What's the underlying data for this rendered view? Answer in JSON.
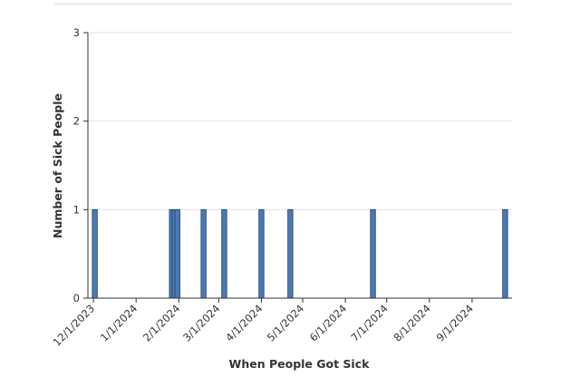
{
  "chart_data": {
    "type": "bar",
    "title": "",
    "xlabel": "When People Got Sick",
    "ylabel": "Number of Sick People",
    "ylim": [
      0,
      3
    ],
    "yticks": [
      "0",
      "1",
      "2",
      "3"
    ],
    "xticks": [
      {
        "date": "2023-12-01",
        "label": "12/1/2023"
      },
      {
        "date": "2024-01-01",
        "label": "1/1/2024"
      },
      {
        "date": "2024-02-01",
        "label": "2/1/2024"
      },
      {
        "date": "2024-03-01",
        "label": "3/1/2024"
      },
      {
        "date": "2024-04-01",
        "label": "4/1/2024"
      },
      {
        "date": "2024-05-01",
        "label": "5/1/2024"
      },
      {
        "date": "2024-06-01",
        "label": "6/1/2024"
      },
      {
        "date": "2024-07-01",
        "label": "7/1/2024"
      },
      {
        "date": "2024-08-01",
        "label": "8/1/2024"
      },
      {
        "date": "2024-09-01",
        "label": "9/1/2024"
      }
    ],
    "points": [
      {
        "date": "2023-12-02",
        "value": 1
      },
      {
        "date": "2024-01-27",
        "value": 1
      },
      {
        "date": "2024-01-29",
        "value": 1
      },
      {
        "date": "2024-01-31",
        "value": 1
      },
      {
        "date": "2024-02-19",
        "value": 1
      },
      {
        "date": "2024-03-05",
        "value": 1
      },
      {
        "date": "2024-04-01",
        "value": 1
      },
      {
        "date": "2024-04-22",
        "value": 1
      },
      {
        "date": "2024-06-21",
        "value": 1
      },
      {
        "date": "2024-09-25",
        "value": 1
      }
    ],
    "grid": true,
    "bar_color": "#4a7ab4",
    "bar_edge_color": "#1f3f66"
  }
}
